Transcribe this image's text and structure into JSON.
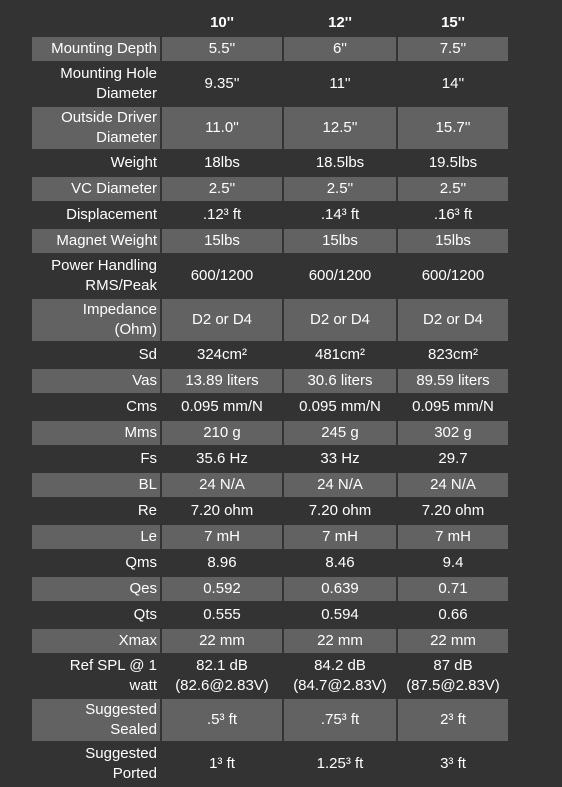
{
  "table": {
    "columns": [
      "10''",
      "12''",
      "15''"
    ],
    "rows": [
      {
        "label": "Mounting Depth",
        "values": [
          "5.5''",
          "6''",
          "7.5''"
        ]
      },
      {
        "label": [
          "Mounting Hole",
          "Diameter"
        ],
        "values": [
          "9.35''",
          "11''",
          "14''"
        ]
      },
      {
        "label": [
          "Outside Driver",
          "Diameter"
        ],
        "values": [
          "11.0''",
          "12.5''",
          "15.7''"
        ]
      },
      {
        "label": "Weight",
        "values": [
          "18lbs",
          "18.5lbs",
          "19.5lbs"
        ]
      },
      {
        "label": "VC Diameter",
        "values": [
          "2.5''",
          "2.5''",
          "2.5''"
        ]
      },
      {
        "label": "Displacement",
        "values": [
          ".12³ ft",
          ".14³ ft",
          ".16³ ft"
        ]
      },
      {
        "label": "Magnet Weight",
        "values": [
          "15lbs",
          "15lbs",
          "15lbs"
        ]
      },
      {
        "label": [
          "Power Handling",
          "RMS/Peak"
        ],
        "values": [
          "600/1200",
          "600/1200",
          "600/1200"
        ]
      },
      {
        "label": [
          "Impedance",
          "(Ohm)"
        ],
        "values": [
          "D2 or D4",
          "D2 or D4",
          "D2 or D4"
        ]
      },
      {
        "label": "Sd",
        "values": [
          "324cm²",
          "481cm²",
          "823cm²"
        ]
      },
      {
        "label": "Vas",
        "values": [
          "13.89 liters",
          "30.6 liters",
          "89.59 liters"
        ]
      },
      {
        "label": "Cms",
        "values": [
          "0.095 mm/N",
          "0.095 mm/N",
          "0.095 mm/N"
        ]
      },
      {
        "label": "Mms",
        "values": [
          "210 g",
          "245 g",
          "302 g"
        ]
      },
      {
        "label": "Fs",
        "values": [
          "35.6 Hz",
          "33 Hz",
          "29.7"
        ]
      },
      {
        "label": "BL",
        "values": [
          "24 N/A",
          "24 N/A",
          "24 N/A"
        ]
      },
      {
        "label": "Re",
        "values": [
          "7.20 ohm",
          "7.20 ohm",
          "7.20 ohm"
        ]
      },
      {
        "label": "Le",
        "values": [
          "7 mH",
          "7 mH",
          "7 mH"
        ]
      },
      {
        "label": "Qms",
        "values": [
          "8.96",
          "8.46",
          "9.4"
        ]
      },
      {
        "label": "Qes",
        "values": [
          "0.592",
          "0.639",
          "0.71"
        ]
      },
      {
        "label": "Qts",
        "values": [
          "0.555",
          "0.594",
          "0.66"
        ]
      },
      {
        "label": "Xmax",
        "values": [
          "22 mm",
          "22 mm",
          "22 mm"
        ]
      },
      {
        "label": [
          "Ref SPL @ 1",
          "watt"
        ],
        "values": [
          [
            "82.1 dB",
            "(82.6@2.83V)"
          ],
          [
            "84.2 dB",
            "(84.7@2.83V)"
          ],
          [
            "87 dB",
            "(87.5@2.83V)"
          ]
        ]
      },
      {
        "label": [
          "Suggested",
          "Sealed"
        ],
        "values": [
          ".5³ ft",
          ".75³ ft",
          "2³ ft"
        ]
      },
      {
        "label": [
          "Suggested",
          "Ported"
        ],
        "values": [
          "1³ ft",
          "1.25³ ft",
          "3³ ft"
        ]
      }
    ]
  }
}
